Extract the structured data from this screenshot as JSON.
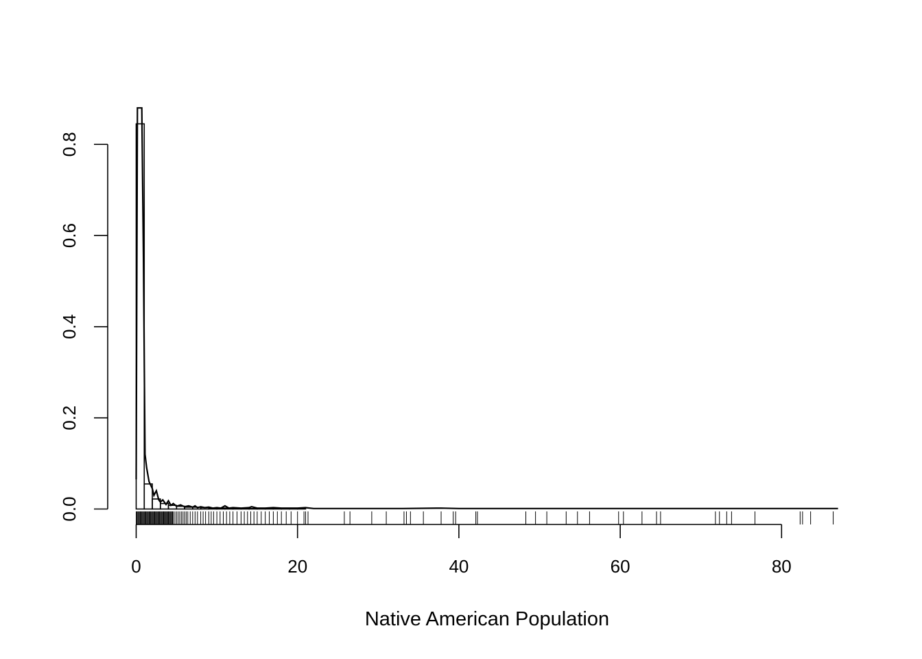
{
  "chart_data": {
    "type": "histogram",
    "title": "",
    "xlabel": "Native American Population",
    "ylabel": "",
    "xlim": [
      0,
      87
    ],
    "ylim": [
      0,
      0.88
    ],
    "x_ticks": [
      0,
      20,
      40,
      60,
      80
    ],
    "x_tick_labels": [
      "0",
      "20",
      "40",
      "60",
      "80"
    ],
    "y_ticks": [
      0.0,
      0.2,
      0.4,
      0.6,
      0.8
    ],
    "y_tick_labels": [
      "0.0",
      "0.2",
      "0.4",
      "0.6",
      "0.8"
    ],
    "grid": false,
    "legend": "none",
    "histogram": {
      "bin_width": 1,
      "bins": [
        {
          "x0": 0,
          "x1": 1,
          "density": 0.845
        },
        {
          "x0": 1,
          "x1": 2,
          "density": 0.055
        },
        {
          "x0": 2,
          "x1": 3,
          "density": 0.022
        },
        {
          "x0": 3,
          "x1": 4,
          "density": 0.012
        },
        {
          "x0": 4,
          "x1": 5,
          "density": 0.008
        },
        {
          "x0": 5,
          "x1": 6,
          "density": 0.006
        },
        {
          "x0": 6,
          "x1": 7,
          "density": 0.004
        },
        {
          "x0": 7,
          "x1": 8,
          "density": 0.004
        },
        {
          "x0": 8,
          "x1": 9,
          "density": 0.003
        },
        {
          "x0": 9,
          "x1": 10,
          "density": 0.002
        },
        {
          "x0": 10,
          "x1": 11,
          "density": 0.002
        },
        {
          "x0": 11,
          "x1": 12,
          "density": 0.002
        },
        {
          "x0": 12,
          "x1": 13,
          "density": 0.001
        },
        {
          "x0": 13,
          "x1": 14,
          "density": 0.001
        },
        {
          "x0": 14,
          "x1": 15,
          "density": 0.001
        },
        {
          "x0": 15,
          "x1": 16,
          "density": 0.001
        },
        {
          "x0": 16,
          "x1": 17,
          "density": 0.001
        },
        {
          "x0": 17,
          "x1": 18,
          "density": 0.001
        },
        {
          "x0": 18,
          "x1": 19,
          "density": 0.001
        },
        {
          "x0": 19,
          "x1": 20,
          "density": 0.001
        },
        {
          "x0": 20,
          "x1": 21,
          "density": 0.001
        }
      ]
    },
    "density_curve": {
      "x": [
        0.0,
        0.05,
        0.15,
        0.3,
        0.5,
        0.7,
        0.9,
        1.1,
        1.3,
        1.6,
        2.0,
        2.2,
        2.5,
        2.8,
        3.0,
        3.3,
        3.7,
        4.0,
        4.3,
        4.6,
        5.0,
        5.5,
        6.0,
        6.5,
        7.0,
        7.3,
        7.6,
        8.0,
        8.5,
        9.0,
        9.5,
        10.0,
        10.5,
        11.0,
        11.5,
        12.0,
        13.0,
        14.0,
        14.3,
        15.0,
        16.0,
        17.0,
        18.0,
        19.0,
        20.0,
        21.0,
        22.0,
        25.0,
        30.0,
        33.0,
        37.8,
        40.0,
        45.0,
        50.0,
        55.0,
        60.0,
        65.0,
        70.0,
        73.0,
        75.0,
        80.0,
        83.0,
        86.5,
        87.0
      ],
      "y": [
        0.065,
        0.35,
        0.88,
        0.88,
        0.88,
        0.88,
        0.55,
        0.12,
        0.09,
        0.06,
        0.045,
        0.03,
        0.04,
        0.02,
        0.015,
        0.02,
        0.01,
        0.018,
        0.008,
        0.012,
        0.006,
        0.009,
        0.005,
        0.007,
        0.004,
        0.007,
        0.003,
        0.005,
        0.003,
        0.004,
        0.002,
        0.003,
        0.002,
        0.007,
        0.002,
        0.003,
        0.002,
        0.003,
        0.005,
        0.002,
        0.002,
        0.003,
        0.002,
        0.002,
        0.002,
        0.003,
        0.001,
        0.001,
        0.001,
        0.001,
        0.002,
        0.001,
        0.001,
        0.001,
        0.001,
        0.001,
        0.001,
        0.001,
        0.001,
        0.001,
        0.001,
        0.001,
        0.001,
        0.001
      ]
    },
    "rug": {
      "x": [
        0.0,
        0.1,
        0.2,
        0.3,
        0.4,
        0.5,
        0.6,
        0.7,
        0.8,
        0.9,
        1.0,
        1.1,
        1.2,
        1.3,
        1.4,
        1.5,
        1.6,
        1.7,
        1.8,
        1.9,
        2.0,
        2.1,
        2.2,
        2.3,
        2.4,
        2.5,
        2.6,
        2.7,
        2.8,
        2.9,
        3.0,
        3.1,
        3.2,
        3.3,
        3.4,
        3.5,
        3.6,
        3.7,
        3.8,
        3.9,
        4.0,
        4.1,
        4.2,
        4.3,
        4.4,
        4.5,
        4.6,
        4.8,
        5.0,
        5.2,
        5.4,
        5.6,
        5.8,
        6.0,
        6.2,
        6.4,
        6.7,
        7.0,
        7.3,
        7.6,
        8.0,
        8.3,
        8.6,
        9.0,
        9.3,
        9.6,
        10.0,
        10.4,
        10.8,
        11.2,
        11.6,
        12.0,
        12.5,
        13.0,
        13.4,
        13.8,
        14.2,
        14.6,
        15.0,
        15.5,
        16.0,
        16.5,
        17.0,
        17.5,
        18.0,
        18.6,
        19.2,
        20.0,
        20.8,
        21.0,
        21.3,
        25.8,
        26.5,
        29.2,
        31.0,
        33.2,
        33.5,
        34.0,
        35.6,
        37.8,
        39.3,
        39.6,
        42.1,
        42.3,
        48.3,
        49.5,
        50.9,
        53.3,
        54.7,
        56.2,
        59.8,
        60.4,
        62.7,
        64.5,
        65.0,
        71.8,
        72.3,
        73.2,
        73.8,
        76.7,
        82.3,
        82.6,
        83.6,
        86.4
      ]
    }
  }
}
